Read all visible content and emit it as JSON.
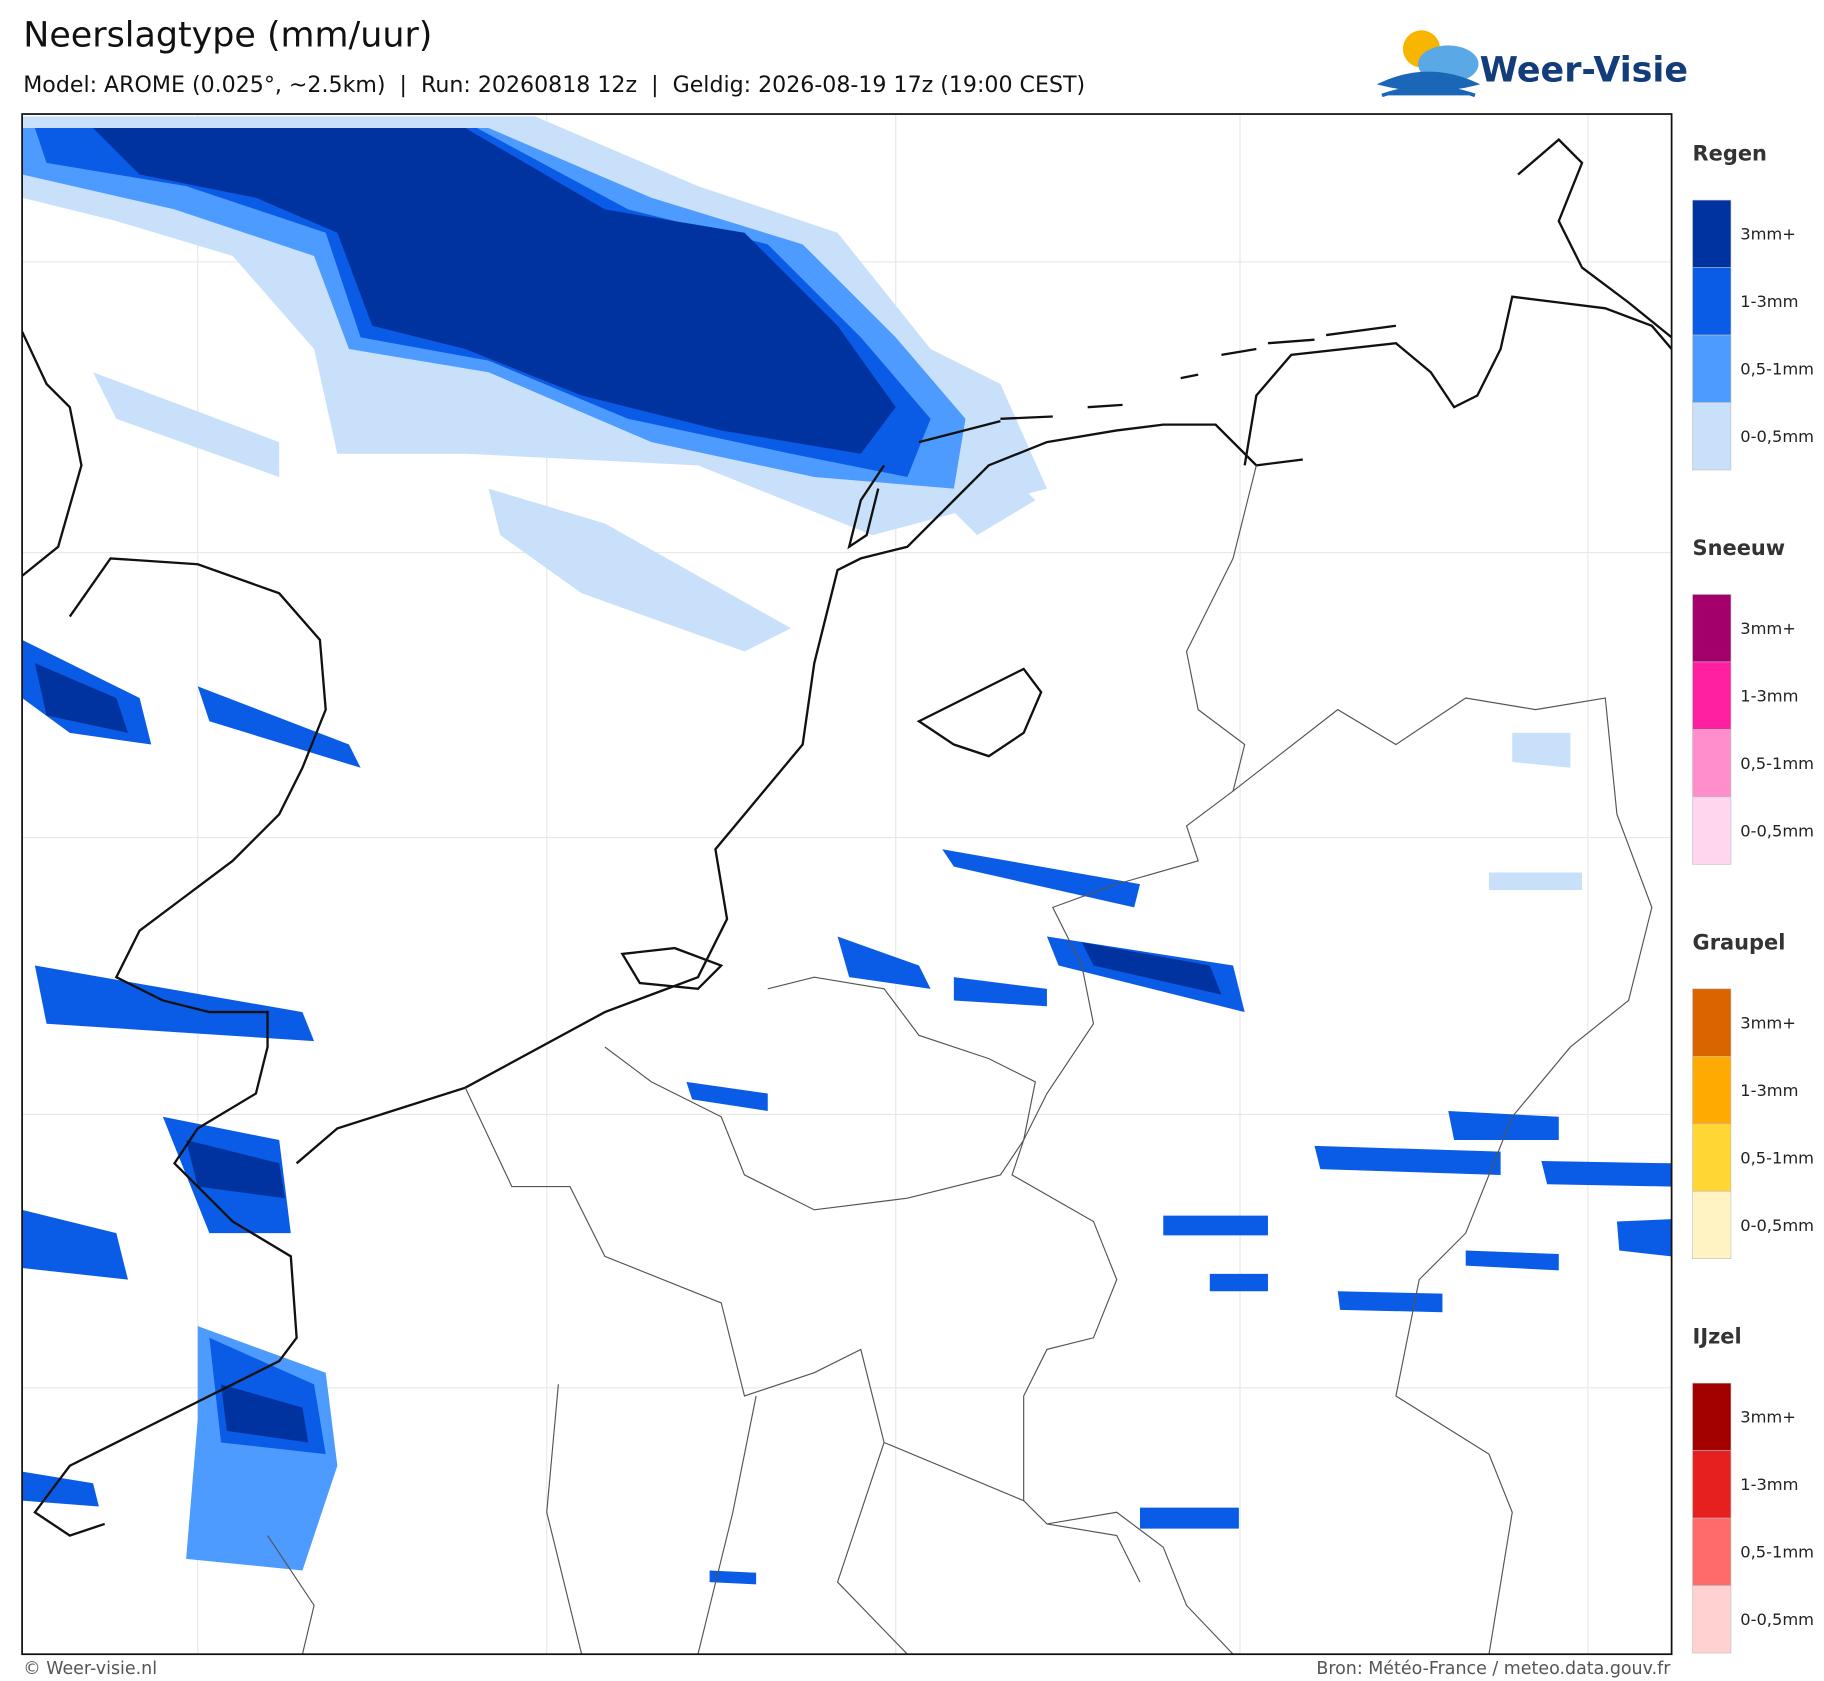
{
  "header": {
    "title": "Neerslagtype (mm/uur)",
    "subtitle": "Model: AROME (0.025°, ~2.5km)  |  Run: 20260818 12z  |  Geldig: 2026-08-19 17z (19:00 CEST)"
  },
  "logo": {
    "text": "Weer-Visie"
  },
  "legend": {
    "sections": [
      {
        "title": "Regen",
        "items": [
          {
            "label": "3mm+",
            "color": "#0033a0"
          },
          {
            "label": "1-3mm",
            "color": "#0a5ce6"
          },
          {
            "label": "0,5-1mm",
            "color": "#4d9bff"
          },
          {
            "label": "0-0,5mm",
            "color": "#c9e0fb"
          }
        ]
      },
      {
        "title": "Sneeuw",
        "items": [
          {
            "label": "3mm+",
            "color": "#a3006b"
          },
          {
            "label": "1-3mm",
            "color": "#ff1fa0"
          },
          {
            "label": "0,5-1mm",
            "color": "#ff8fcc"
          },
          {
            "label": "0-0,5mm",
            "color": "#ffd6ee"
          }
        ]
      },
      {
        "title": "Graupel",
        "items": [
          {
            "label": "3mm+",
            "color": "#d96400"
          },
          {
            "label": "1-3mm",
            "color": "#ffaa00"
          },
          {
            "label": "0,5-1mm",
            "color": "#ffd633"
          },
          {
            "label": "0-0,5mm",
            "color": "#fff3c4"
          }
        ]
      },
      {
        "title": "IJzel",
        "items": [
          {
            "label": "3mm+",
            "color": "#a30000"
          },
          {
            "label": "1-3mm",
            "color": "#e61f1f"
          },
          {
            "label": "0,5-1mm",
            "color": "#ff6b6b"
          },
          {
            "label": "0-0,5mm",
            "color": "#ffd1d1"
          }
        ]
      }
    ]
  },
  "footer": {
    "left": "© Weer-visie.nl",
    "right": "Bron: Météo-France / meteo.data.gouv.fr"
  }
}
